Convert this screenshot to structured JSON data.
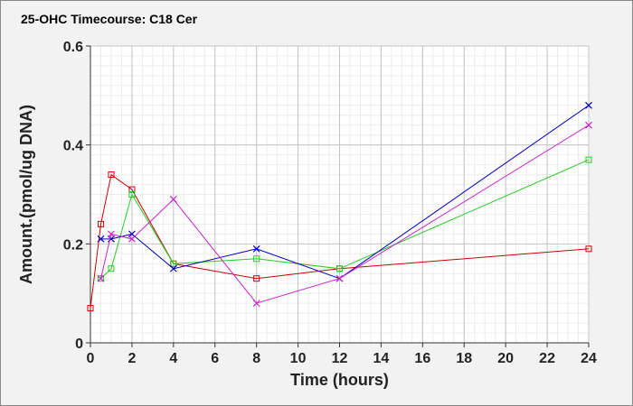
{
  "chart_data": {
    "type": "line",
    "title": "25-OHC Timecourse: C18 Cer",
    "xlabel": "Time (hours)",
    "ylabel": "Amount.(pmol/ug DNA)",
    "xlim": [
      0,
      24
    ],
    "ylim": [
      0,
      0.6
    ],
    "xticks": [
      0,
      2,
      4,
      6,
      8,
      10,
      12,
      14,
      16,
      18,
      20,
      22,
      24
    ],
    "yticks": [
      0,
      0.2,
      0.4,
      0.6
    ],
    "ytick_labels": [
      "0",
      "0.2",
      "0.4",
      "0.6"
    ],
    "grid": true,
    "series": [
      {
        "marker": "square",
        "color": "#cc0000",
        "x": [
          0,
          0.5,
          1,
          2,
          4,
          8,
          12,
          24
        ],
        "values": [
          0.07,
          0.24,
          0.34,
          0.31,
          0.16,
          0.13,
          0.15,
          0.19
        ]
      },
      {
        "marker": "square",
        "color": "#22cc22",
        "x": [
          0.5,
          1,
          2,
          4,
          8,
          12,
          24
        ],
        "values": [
          0.13,
          0.15,
          0.3,
          0.16,
          0.17,
          0.15,
          0.37
        ]
      },
      {
        "marker": "x",
        "color": "#0000bb",
        "x": [
          0.5,
          1,
          2,
          4,
          8,
          12,
          24
        ],
        "values": [
          0.21,
          0.21,
          0.22,
          0.15,
          0.19,
          0.13,
          0.48
        ]
      },
      {
        "marker": "x",
        "color": "#cc22cc",
        "x": [
          0.5,
          1,
          2,
          4,
          8,
          12,
          24
        ],
        "values": [
          0.13,
          0.22,
          0.21,
          0.29,
          0.08,
          0.13,
          0.44
        ]
      }
    ]
  }
}
